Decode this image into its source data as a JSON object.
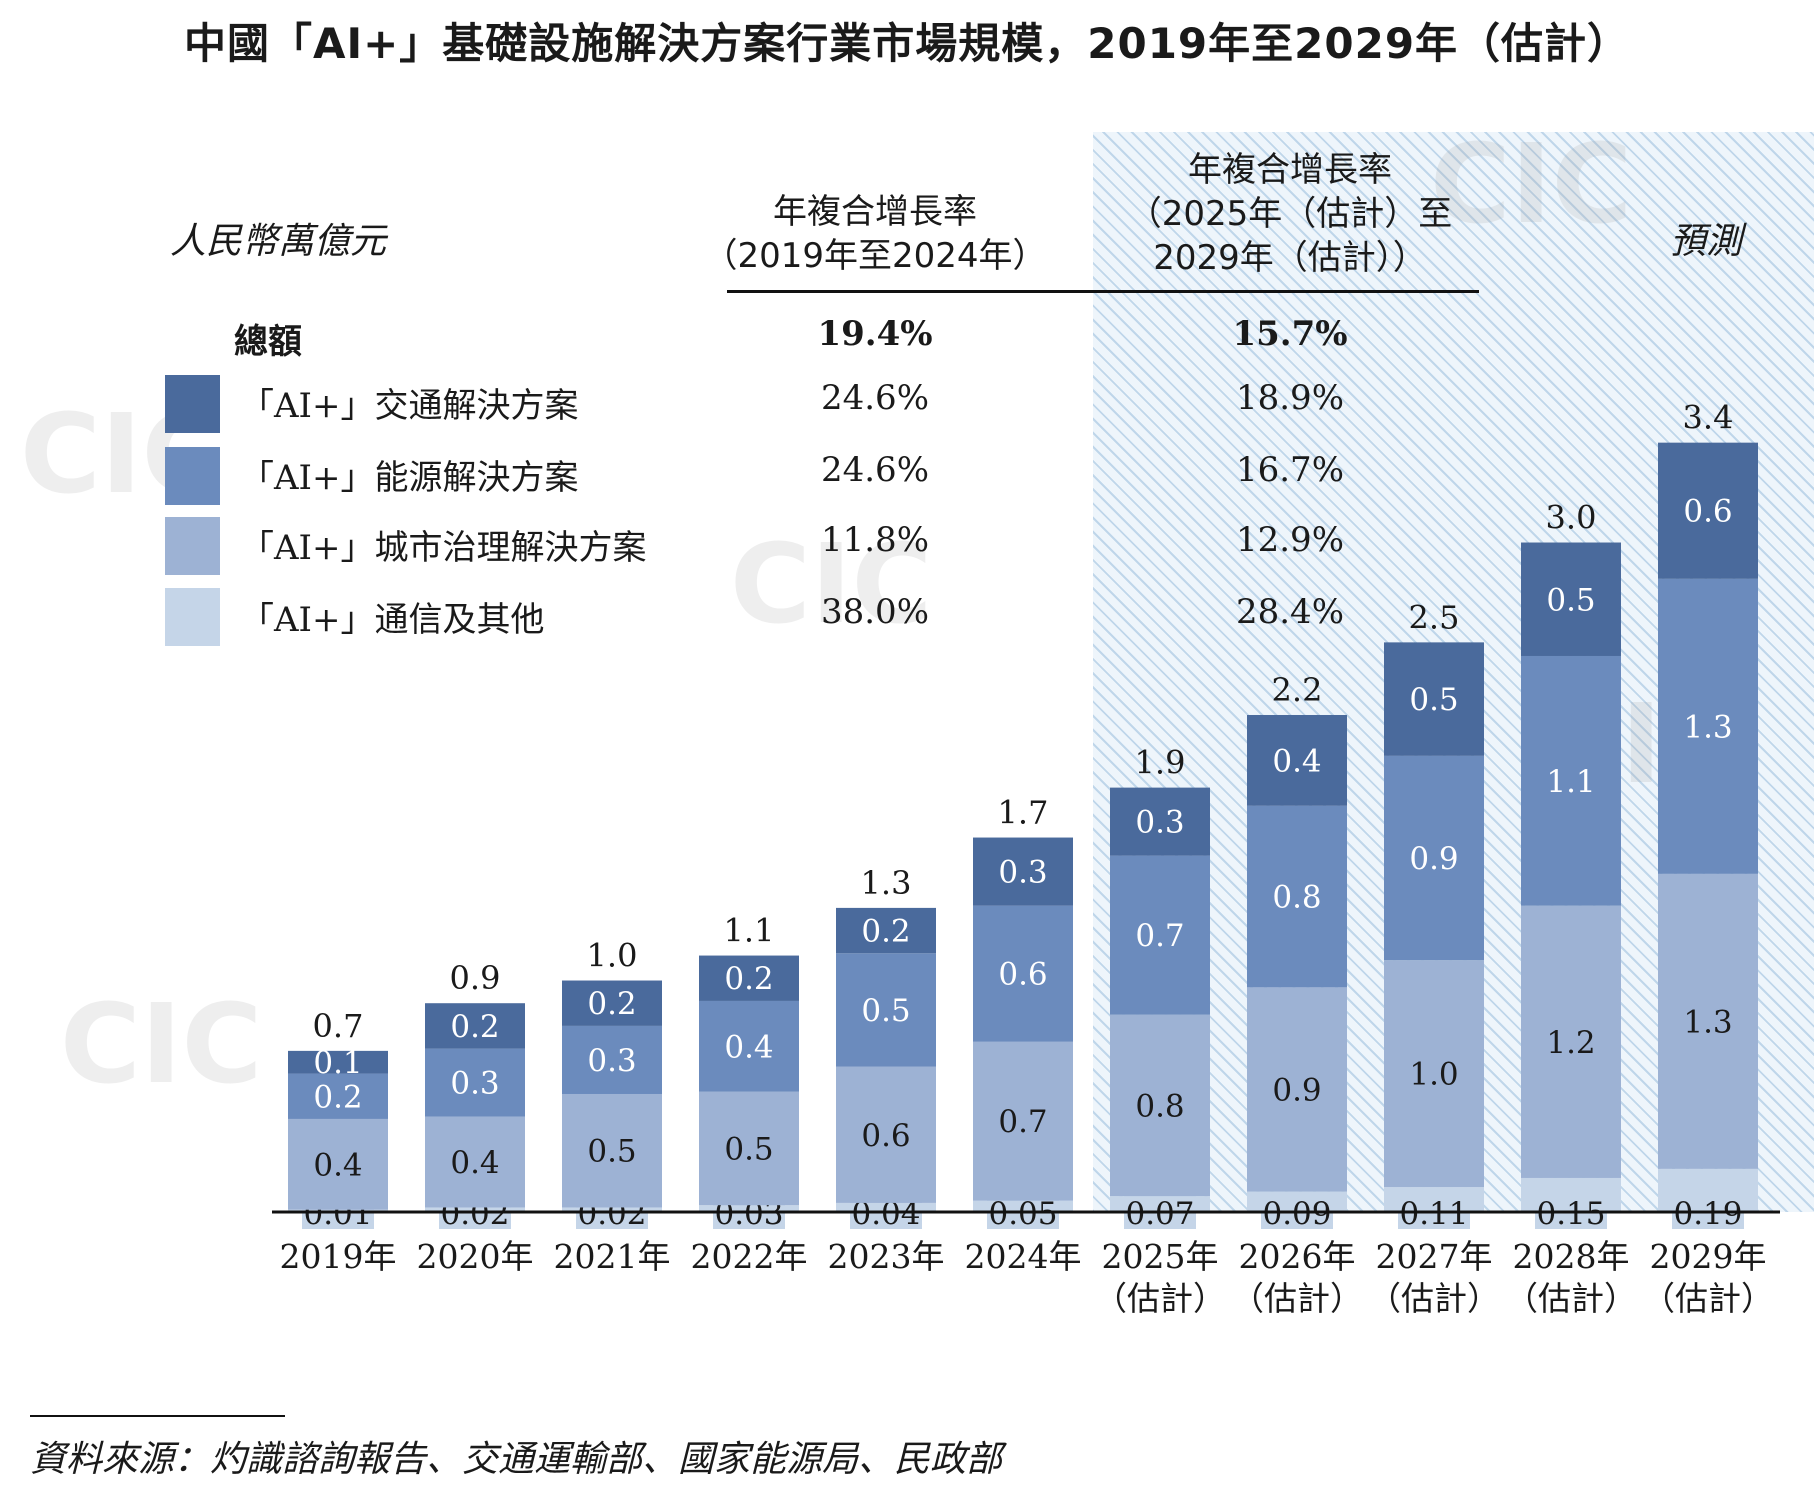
{
  "title": "中國「AI+」基礎設施解決方案行業市場規模，2019年至2029年（估計）",
  "unit": "人民幣萬億元",
  "forecast_label": "預測",
  "cagr_headers": {
    "hist_line1": "年複合增長率",
    "hist_line2": "（2019年至2024年）",
    "fc_line1": "年複合增長率",
    "fc_line2": "（2025年（估計）至",
    "fc_line3": "2029年（估計））"
  },
  "legend": {
    "total_label": "總額",
    "total_hist": "19.4%",
    "total_fc": "15.7%",
    "rows": [
      {
        "label": "「AI+」交通解決方案",
        "hist": "24.6%",
        "fc": "18.9%",
        "color": "#4a6a9c"
      },
      {
        "label": "「AI+」能源解決方案",
        "hist": "24.6%",
        "fc": "16.7%",
        "color": "#6b8bbd"
      },
      {
        "label": "「AI+」城市治理解決方案",
        "hist": "11.8%",
        "fc": "12.9%",
        "color": "#9db2d4"
      },
      {
        "label": "「AI+」通信及其他",
        "hist": "38.0%",
        "fc": "28.4%",
        "color": "#c5d5e8"
      }
    ]
  },
  "chart_data": {
    "type": "bar",
    "stacked": true,
    "categories": [
      {
        "year": "2019年",
        "est": ""
      },
      {
        "year": "2020年",
        "est": ""
      },
      {
        "year": "2021年",
        "est": ""
      },
      {
        "year": "2022年",
        "est": ""
      },
      {
        "year": "2023年",
        "est": ""
      },
      {
        "year": "2024年",
        "est": ""
      },
      {
        "year": "2025年",
        "est": "（估計）"
      },
      {
        "year": "2026年",
        "est": "（估計）"
      },
      {
        "year": "2027年",
        "est": "（估計）"
      },
      {
        "year": "2028年",
        "est": "（估計）"
      },
      {
        "year": "2029年",
        "est": "（估計）"
      }
    ],
    "totals": [
      "0.7",
      "0.9",
      "1.0",
      "1.1",
      "1.3",
      "1.7",
      "1.9",
      "2.2",
      "2.5",
      "3.0",
      "3.4"
    ],
    "series": [
      {
        "name": "「AI+」通信及其他",
        "color": "#c5d5e8",
        "text_color": "#1a1a1a",
        "values": [
          "0.01",
          "0.02",
          "0.02",
          "0.03",
          "0.04",
          "0.05",
          "0.07",
          "0.09",
          "0.11",
          "0.15",
          "0.19"
        ]
      },
      {
        "name": "「AI+」城市治理解決方案",
        "color": "#9db2d4",
        "text_color": "#1a1a1a",
        "values": [
          "0.4",
          "0.4",
          "0.5",
          "0.5",
          "0.6",
          "0.7",
          "0.8",
          "0.9",
          "1.0",
          "1.2",
          "1.3"
        ]
      },
      {
        "name": "「AI+」能源解決方案",
        "color": "#6b8bbd",
        "text_color": "#ffffff",
        "values": [
          "0.2",
          "0.3",
          "0.3",
          "0.4",
          "0.5",
          "0.6",
          "0.7",
          "0.8",
          "0.9",
          "1.1",
          "1.3"
        ]
      },
      {
        "name": "「AI+」交通解決方案",
        "color": "#4a6a9c",
        "text_color": "#ffffff",
        "values": [
          "0.1",
          "0.2",
          "0.2",
          "0.2",
          "0.2",
          "0.3",
          "0.3",
          "0.4",
          "0.5",
          "0.5",
          "0.6"
        ]
      }
    ],
    "ylim": [
      0,
      3.6
    ],
    "xlabel": "",
    "ylabel": "人民幣萬億元"
  },
  "source": "資料來源：灼識諮詢報告、交通運輸部、國家能源局、民政部"
}
